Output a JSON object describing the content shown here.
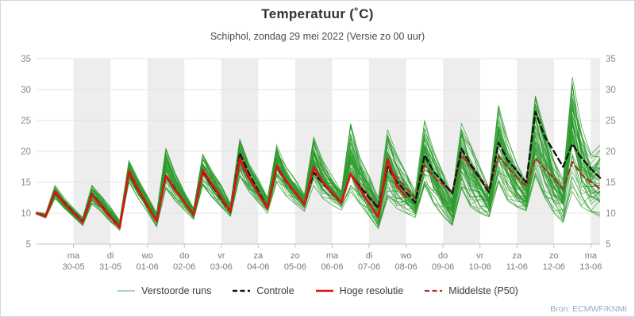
{
  "page": {
    "title": "Temperatuur (˚C)",
    "subtitle": "Schiphol, zondag 29 mei 2022 (Versie zo 00 uur)",
    "source": "Bron: ECMWF/KNMI"
  },
  "colors": {
    "band_gray": "#ededed",
    "gridline": "#e3e3e3",
    "axis": "#b6c6da",
    "x_label": "#7a7a7a",
    "y_label": "#8a8a8a",
    "ensemble_green": "#2e9b2e",
    "legend_green": "#8fc48f",
    "controle_black": "#141414",
    "hres_red": "#dd1414",
    "p50_darkred": "#a93226"
  },
  "legend": [
    {
      "label": "Verstoorde runs",
      "color": "#8fc48f",
      "dash": false,
      "width": 1.6
    },
    {
      "label": "Controle",
      "color": "#141414",
      "dash": true,
      "width": 2.4
    },
    {
      "label": "Hoge resolutie",
      "color": "#dd1414",
      "dash": false,
      "width": 2.6
    },
    {
      "label": "Middelste (P50)",
      "color": "#a93226",
      "dash": true,
      "width": 2.2
    }
  ],
  "chart_data": {
    "type": "line",
    "title": "Temperatuur (˚C)",
    "subtitle": "Schiphol, zondag 29 mei 2022 (Versie zo 00 uur)",
    "x_axis": {
      "unit": "hours since 2022-05-29 00:00",
      "range": [
        0,
        366
      ],
      "day_band_alternation": true,
      "ticks": [
        {
          "t": 24,
          "day": "ma",
          "date": "30-05"
        },
        {
          "t": 48,
          "day": "di",
          "date": "31-05"
        },
        {
          "t": 72,
          "day": "wo",
          "date": "01-06"
        },
        {
          "t": 96,
          "day": "do",
          "date": "02-06"
        },
        {
          "t": 120,
          "day": "vr",
          "date": "03-06"
        },
        {
          "t": 144,
          "day": "za",
          "date": "04-06"
        },
        {
          "t": 168,
          "day": "zo",
          "date": "05-06"
        },
        {
          "t": 192,
          "day": "ma",
          "date": "06-06"
        },
        {
          "t": 216,
          "day": "di",
          "date": "07-06"
        },
        {
          "t": 240,
          "day": "wo",
          "date": "08-06"
        },
        {
          "t": 264,
          "day": "do",
          "date": "09-06"
        },
        {
          "t": 288,
          "day": "vr",
          "date": "10-06"
        },
        {
          "t": 312,
          "day": "za",
          "date": "11-06"
        },
        {
          "t": 336,
          "day": "zo",
          "date": "12-06"
        },
        {
          "t": 360,
          "day": "ma",
          "date": "13-06"
        }
      ]
    },
    "y_axis": {
      "range": [
        5,
        35
      ],
      "ticks": [
        5,
        10,
        15,
        20,
        25,
        30,
        35
      ],
      "sides": "both",
      "grid": true
    },
    "series": [
      {
        "name": "Controle",
        "style": "dashed",
        "color": "#141414",
        "width": 2.4,
        "t0": 0,
        "dt": 6,
        "values": [
          10.0,
          9.6,
          13.4,
          11.7,
          10.1,
          8.6,
          13.1,
          11.2,
          9.4,
          7.7,
          16.6,
          13.8,
          11.2,
          8.7,
          16.2,
          13.9,
          11.8,
          9.7,
          16.8,
          14.5,
          12.3,
          10.2,
          19.7,
          16.4,
          13.6,
          10.8,
          17.6,
          15.2,
          13.3,
          11.4,
          16.6,
          14.8,
          13.2,
          11.7,
          16.3,
          14.3,
          12.5,
          10.8,
          17.5,
          15.1,
          13.4,
          11.7,
          19.4,
          16.7,
          15.0,
          13.2,
          20.4,
          17.9,
          15.6,
          13.4,
          21.4,
          18.6,
          16.8,
          15.0,
          26.4,
          22.4,
          20.0,
          17.5,
          21.2,
          18.9,
          17.2,
          15.7
        ]
      },
      {
        "name": "Hoge resolutie",
        "style": "solid",
        "color": "#dd1414",
        "width": 2.6,
        "t0": 0,
        "dt": 6,
        "values": [
          10.0,
          9.5,
          13.5,
          11.6,
          10.0,
          8.5,
          13.0,
          11.1,
          9.3,
          7.6,
          16.8,
          13.9,
          11.3,
          8.7,
          16.1,
          13.8,
          11.8,
          9.7,
          17.0,
          14.7,
          12.5,
          10.3,
          18.9,
          15.8,
          13.2,
          10.8,
          17.7,
          15.3,
          13.3,
          11.4,
          17.5,
          15.0,
          13.3,
          11.7,
          16.4,
          13.9,
          11.6,
          9.4,
          18.8,
          14.5,
          12.6
        ]
      },
      {
        "name": "Middelste (P50)",
        "style": "dashed",
        "color": "#a93226",
        "width": 2.2,
        "t0": 0,
        "dt": 6,
        "values": [
          10.0,
          9.6,
          13.3,
          11.5,
          10.0,
          8.6,
          13.0,
          11.4,
          9.6,
          7.8,
          16.4,
          13.7,
          11.2,
          8.8,
          16.0,
          13.8,
          11.8,
          9.8,
          16.6,
          14.4,
          12.4,
          10.4,
          18.3,
          15.5,
          13.2,
          11.0,
          17.4,
          15.3,
          13.4,
          11.5,
          17.0,
          15.1,
          13.4,
          11.8,
          16.4,
          14.5,
          12.7,
          11.0,
          17.6,
          15.8,
          14.1,
          12.4,
          17.8,
          15.9,
          14.6,
          13.4,
          19.4,
          17.5,
          15.7,
          14.0,
          19.2,
          17.5,
          15.9,
          14.4,
          18.9,
          17.2,
          15.6,
          14.0,
          18.3,
          16.2,
          15.1,
          13.9
        ]
      }
    ],
    "ensemble": {
      "name": "Verstoorde runs",
      "color": "#2e9b2e",
      "member_count": 50,
      "envelope_min": {
        "t0": 0,
        "dt": 6,
        "values": [
          9.8,
          9.2,
          12.4,
          10.8,
          9.4,
          8.0,
          11.5,
          10.2,
          8.6,
          7.2,
          15.0,
          12.4,
          10.2,
          7.8,
          14.0,
          12.0,
          10.5,
          9.0,
          14.5,
          12.6,
          11.0,
          9.5,
          16.0,
          13.5,
          11.8,
          10.0,
          15.0,
          12.8,
          11.5,
          10.3,
          14.5,
          12.4,
          11.3,
          10.5,
          13.5,
          11.5,
          9.5,
          7.5,
          12.5,
          10.8,
          10.0,
          9.3,
          14.5,
          11.5,
          9.5,
          8.0,
          14.0,
          11.0,
          10.0,
          9.4,
          15.0,
          12.0,
          11.0,
          10.4,
          16.0,
          12.5,
          10.0,
          8.5,
          13.5,
          11.0,
          10.2,
          9.5
        ]
      },
      "envelope_max": {
        "t0": 0,
        "dt": 6,
        "values": [
          10.2,
          10.0,
          14.5,
          12.5,
          10.8,
          9.3,
          14.5,
          12.8,
          11.0,
          8.8,
          18.5,
          15.5,
          12.8,
          10.0,
          20.5,
          16.5,
          13.5,
          10.8,
          19.5,
          16.8,
          14.5,
          11.5,
          22.0,
          18.0,
          15.5,
          12.5,
          21.0,
          17.5,
          15.5,
          13.0,
          22.3,
          18.5,
          16.0,
          13.5,
          24.5,
          19.0,
          16.0,
          12.5,
          23.5,
          19.5,
          16.5,
          13.5,
          25.0,
          20.0,
          16.5,
          13.0,
          24.5,
          21.0,
          17.5,
          14.0,
          27.5,
          22.0,
          18.0,
          15.0,
          29.0,
          23.5,
          18.5,
          15.5,
          32.0,
          24.0,
          19.5,
          21.0
        ]
      }
    }
  }
}
